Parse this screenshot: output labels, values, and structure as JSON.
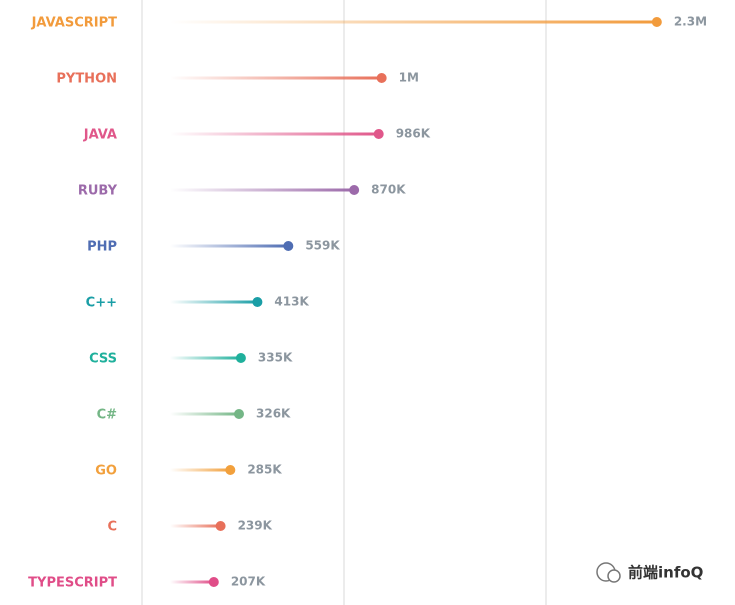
{
  "chart_data": {
    "type": "lollipop",
    "categories": [
      "JAVASCRIPT",
      "PYTHON",
      "JAVA",
      "RUBY",
      "PHP",
      "C++",
      "CSS",
      "C#",
      "GO",
      "C",
      "TYPESCRIPT"
    ],
    "values": [
      2300000,
      1000000,
      986000,
      870000,
      559000,
      413000,
      335000,
      326000,
      285000,
      239000,
      207000
    ],
    "value_labels": [
      "2.3M",
      "1M",
      "986K",
      "870K",
      "559K",
      "413K",
      "335K",
      "326K",
      "285K",
      "239K",
      "207K"
    ],
    "colors": [
      "#f29b3c",
      "#e8705a",
      "#e0578a",
      "#9c6aaa",
      "#4f6db3",
      "#1a9ea6",
      "#1fb09c",
      "#74b686",
      "#f2a03c",
      "#e8705a",
      "#e04d88"
    ],
    "xlim": [
      0,
      2400000
    ],
    "watermark": "前端infoQ"
  }
}
